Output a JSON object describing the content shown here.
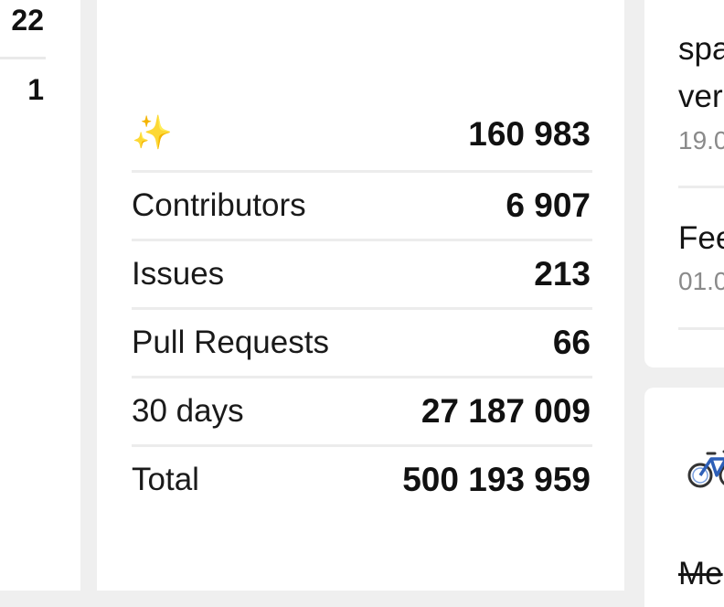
{
  "left_panel": {
    "values": [
      "22",
      "1"
    ]
  },
  "stats": {
    "stars_icon": "sparkles-icon",
    "stars_value": "160 983",
    "rows": [
      {
        "label": "Contributors",
        "value": "6 907"
      },
      {
        "label": "Issues",
        "value": "213"
      },
      {
        "label": "Pull Requests",
        "value": "66"
      },
      {
        "label": "30 days",
        "value": "27 187 009"
      },
      {
        "label": "Total",
        "value": "500 193 959"
      }
    ]
  },
  "right_panel_top": {
    "item1_line1": "spa",
    "item1_line2": "ver",
    "item1_date": "19.0",
    "item2_title": "Fee",
    "item2_date": "01.0"
  },
  "right_panel_bottom": {
    "icon": "bicycle-icon",
    "strike_text": "Me"
  },
  "colors": {
    "background": "#efefef",
    "card": "#ffffff",
    "divider": "#ececec",
    "muted_text": "#8a8a8a",
    "sparkle": "#f2c744",
    "bike_blue": "#2d5fb8"
  }
}
